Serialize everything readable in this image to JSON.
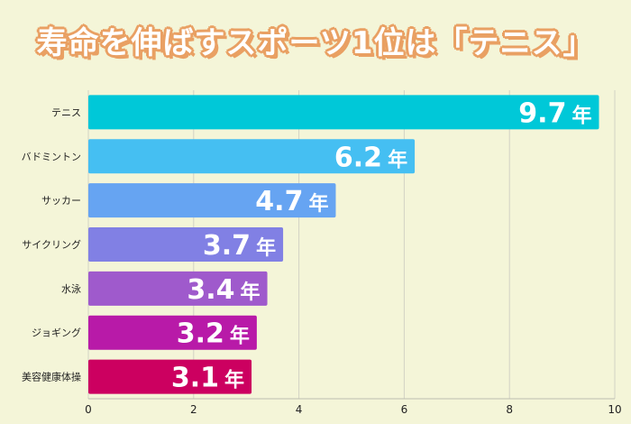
{
  "chart_data": {
    "type": "bar",
    "orientation": "horizontal",
    "title": "寿命を伸ばすスポーツ1位は「テニス」",
    "categories": [
      "テニス",
      "バドミントン",
      "サッカー",
      "サイクリング",
      "水泳",
      "ジョギング",
      "美容健康体操"
    ],
    "values": [
      9.7,
      6.2,
      4.7,
      3.7,
      3.4,
      3.2,
      3.1
    ],
    "value_unit": "年",
    "xlim": [
      0,
      10
    ],
    "xticks": [
      0,
      2,
      4,
      6,
      8,
      10
    ],
    "grid": true,
    "bar_colors": [
      "#00c8d8",
      "#45bff2",
      "#66a4f2",
      "#8180e4",
      "#9f5acc",
      "#b81aa8",
      "#cc0060"
    ],
    "background": "#f4f5d8",
    "title_outline_color": "#e9a063"
  }
}
